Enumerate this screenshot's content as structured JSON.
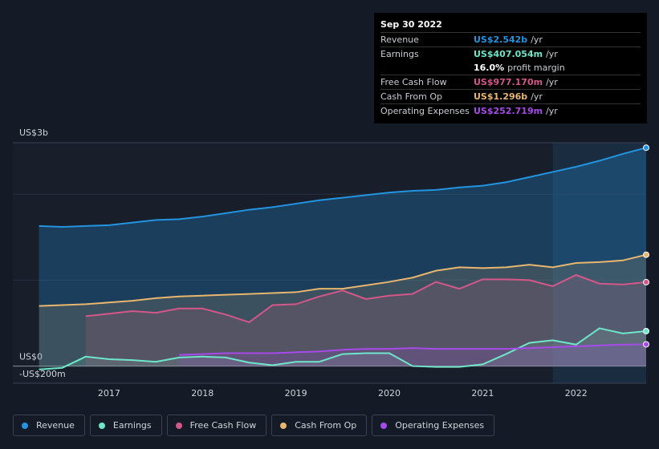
{
  "chart_data": {
    "type": "line",
    "y_axis_label": "US$3b",
    "x": [
      2016.25,
      2016.5,
      2016.75,
      2017,
      2017.25,
      2017.5,
      2017.75,
      2018,
      2018.25,
      2018.5,
      2018.75,
      2019,
      2019.25,
      2019.5,
      2019.75,
      2020,
      2020.25,
      2020.5,
      2020.75,
      2021,
      2021.25,
      2021.5,
      2021.75,
      2022,
      2022.25,
      2022.5,
      2022.75
    ],
    "xlim": [
      2015.97,
      2022.75
    ],
    "xticks": [
      2017,
      2018,
      2019,
      2020,
      2021,
      2022
    ],
    "ylim": [
      -0.2,
      2.6
    ],
    "yticks": [
      {
        "value": -0.2,
        "label": "-US$200m"
      },
      {
        "value": 0,
        "label": "US$0"
      }
    ],
    "grid_lines": [
      1,
      2
    ],
    "shade_start": 2021.75,
    "series": [
      {
        "name": "Revenue",
        "color": "#2394df",
        "values": [
          1.63,
          1.62,
          1.63,
          1.64,
          1.67,
          1.7,
          1.71,
          1.74,
          1.78,
          1.82,
          1.85,
          1.89,
          1.93,
          1.96,
          1.99,
          2.02,
          2.04,
          2.05,
          2.08,
          2.1,
          2.14,
          2.2,
          2.26,
          2.32,
          2.39,
          2.47,
          2.542
        ]
      },
      {
        "name": "Earnings",
        "color": "#6ee6c9",
        "values": [
          -0.04,
          -0.02,
          0.11,
          0.08,
          0.07,
          0.05,
          0.1,
          0.11,
          0.1,
          0.04,
          0.01,
          0.05,
          0.05,
          0.14,
          0.15,
          0.15,
          0.0,
          -0.01,
          -0.01,
          0.02,
          0.14,
          0.27,
          0.3,
          0.25,
          0.44,
          0.38,
          0.407
        ]
      },
      {
        "name": "Free Cash Flow",
        "color": "#d4578a",
        "values": [
          null,
          null,
          0.58,
          0.61,
          0.64,
          0.62,
          0.67,
          0.67,
          0.6,
          0.51,
          0.71,
          0.72,
          0.81,
          0.88,
          0.78,
          0.82,
          0.84,
          0.98,
          0.9,
          1.01,
          1.01,
          1.0,
          0.93,
          1.06,
          0.96,
          0.95,
          0.977
        ]
      },
      {
        "name": "Cash From Op",
        "color": "#e8b66f",
        "values": [
          0.7,
          0.71,
          0.72,
          0.74,
          0.76,
          0.79,
          0.81,
          0.82,
          0.83,
          0.84,
          0.85,
          0.86,
          0.9,
          0.9,
          0.94,
          0.98,
          1.03,
          1.11,
          1.15,
          1.14,
          1.15,
          1.18,
          1.15,
          1.2,
          1.21,
          1.23,
          1.296
        ]
      },
      {
        "name": "Operating Expenses",
        "color": "#a64be8",
        "values": [
          null,
          null,
          null,
          null,
          null,
          null,
          0.13,
          0.14,
          0.15,
          0.15,
          0.15,
          0.16,
          0.17,
          0.19,
          0.2,
          0.2,
          0.21,
          0.2,
          0.2,
          0.2,
          0.2,
          0.21,
          0.22,
          0.23,
          0.24,
          0.25,
          0.253
        ]
      }
    ]
  },
  "tooltip": {
    "date": "Sep 30 2022",
    "rows": [
      {
        "label": "Revenue",
        "value": "US$2.542b",
        "suffix": "/yr",
        "color": "#2394df"
      },
      {
        "label": "Earnings",
        "value": "US$407.054m",
        "suffix": "/yr",
        "color": "#6ee6c9"
      },
      {
        "label": null,
        "value": "16.0%",
        "suffix": "profit margin",
        "color": "#ffffff"
      },
      {
        "label": "Free Cash Flow",
        "value": "US$977.170m",
        "suffix": "/yr",
        "color": "#d4578a"
      },
      {
        "label": "Cash From Op",
        "value": "US$1.296b",
        "suffix": "/yr",
        "color": "#e8b66f"
      },
      {
        "label": "Operating Expenses",
        "value": "US$252.719m",
        "suffix": "/yr",
        "color": "#a64be8"
      }
    ]
  }
}
